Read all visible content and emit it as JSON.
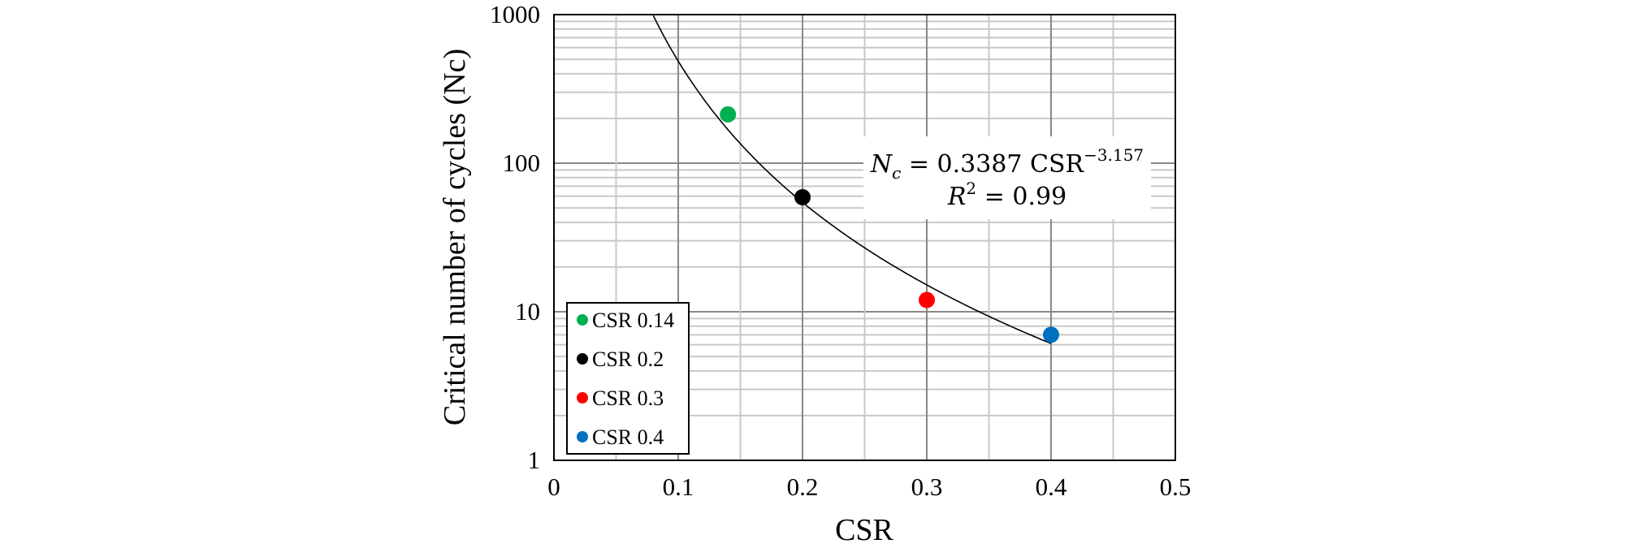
{
  "chart_data": {
    "type": "scatter",
    "title": "",
    "xlabel": "CSR",
    "ylabel": "Critical number of cycles (Nc)",
    "xlim": [
      0,
      0.5
    ],
    "ylim": [
      1,
      1000
    ],
    "yscale": "log",
    "grid": true,
    "x_ticks": [
      "0",
      "0.1",
      "0.2",
      "0.3",
      "0.4",
      "0.5"
    ],
    "y_ticks": [
      "1",
      "10",
      "100",
      "1000"
    ],
    "legend_position": "bottom-left",
    "series": [
      {
        "name": "CSR 0.14",
        "color": "#00b050",
        "x": [
          0.14
        ],
        "y": [
          213
        ]
      },
      {
        "name": "CSR 0.2",
        "color": "#000000",
        "x": [
          0.2
        ],
        "y": [
          59
        ]
      },
      {
        "name": "CSR 0.3",
        "color": "#ff0000",
        "x": [
          0.3
        ],
        "y": [
          12
        ]
      },
      {
        "name": "CSR 0.4",
        "color": "#0070c0",
        "x": [
          0.4
        ],
        "y": [
          7
        ]
      }
    ],
    "fit": {
      "a": 0.3387,
      "b": -3.157,
      "x_range": [
        0.08,
        0.4
      ],
      "equation_lhs": "N",
      "equation_sub": "c",
      "equation_rhs": " = 0.3387 CSR",
      "equation_exp": "−3.157",
      "r2_lhs": "R",
      "r2_exp": "2",
      "r2_rhs": " = 0.99"
    }
  }
}
